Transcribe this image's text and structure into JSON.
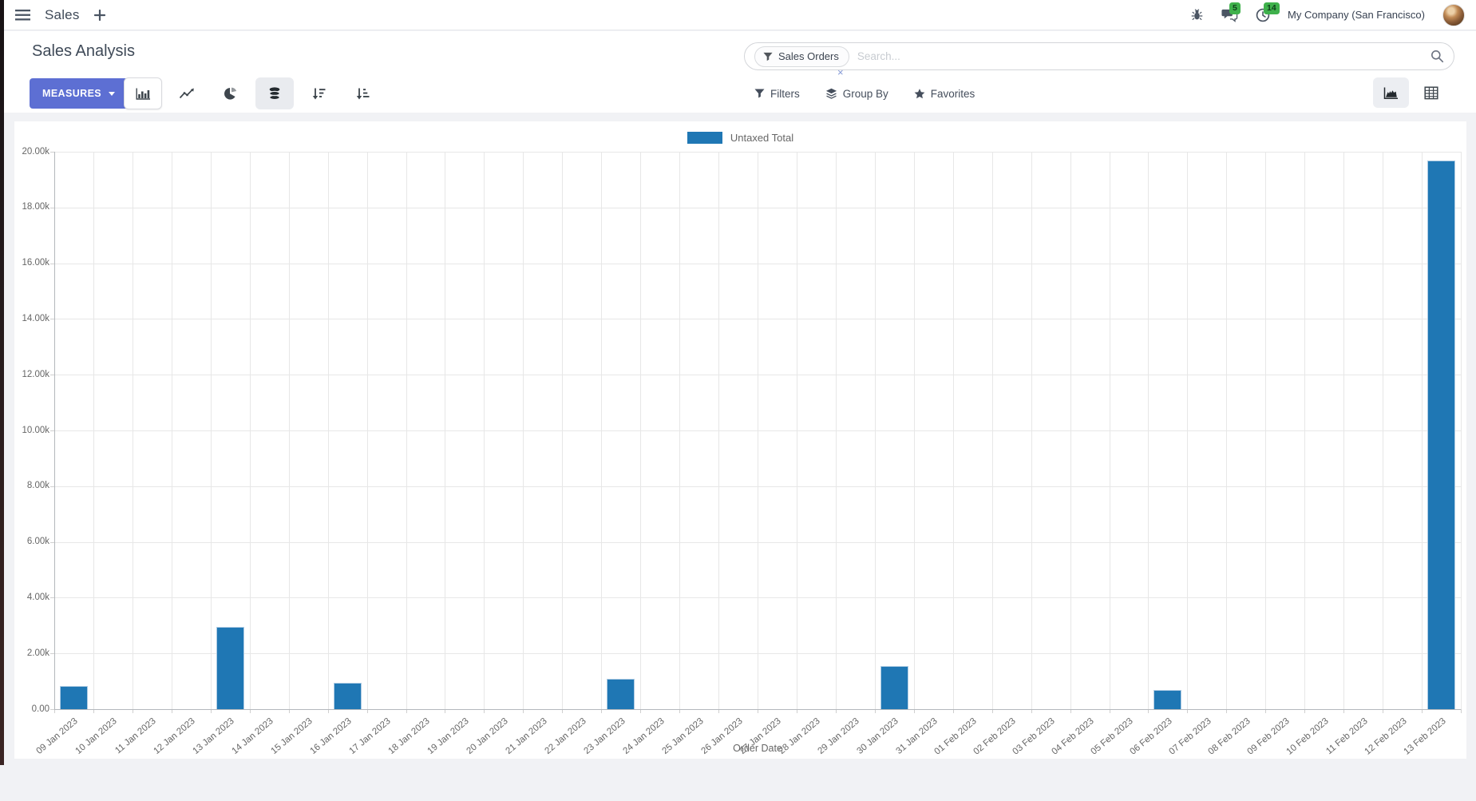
{
  "navbar": {
    "app_label": "Sales",
    "messages_badge": "5",
    "activities_badge": "14",
    "company": "My Company (San Francisco)"
  },
  "control_panel": {
    "title": "Sales Analysis",
    "measures_label": "MEASURES",
    "search": {
      "facet_label": "Sales Orders",
      "facet_remove": "×",
      "placeholder": "Search..."
    },
    "menus": {
      "filters": "Filters",
      "group_by": "Group By",
      "favorites": "Favorites"
    }
  },
  "chart_data": {
    "type": "bar",
    "title": "",
    "xlabel": "Order Date",
    "ylabel": "",
    "ylim": [
      0,
      20000
    ],
    "grid": true,
    "legend_position": "top",
    "ytick_values": [
      0,
      2000,
      4000,
      6000,
      8000,
      10000,
      12000,
      14000,
      16000,
      18000,
      20000
    ],
    "ytick_labels": [
      "0.00",
      "2.00k",
      "4.00k",
      "6.00k",
      "8.00k",
      "10.00k",
      "12.00k",
      "14.00k",
      "16.00k",
      "18.00k",
      "20.00k"
    ],
    "categories": [
      "09 Jan 2023",
      "10 Jan 2023",
      "11 Jan 2023",
      "12 Jan 2023",
      "13 Jan 2023",
      "14 Jan 2023",
      "15 Jan 2023",
      "16 Jan 2023",
      "17 Jan 2023",
      "18 Jan 2023",
      "19 Jan 2023",
      "20 Jan 2023",
      "21 Jan 2023",
      "22 Jan 2023",
      "23 Jan 2023",
      "24 Jan 2023",
      "25 Jan 2023",
      "26 Jan 2023",
      "27 Jan 2023",
      "28 Jan 2023",
      "29 Jan 2023",
      "30 Jan 2023",
      "31 Jan 2023",
      "01 Feb 2023",
      "02 Feb 2023",
      "03 Feb 2023",
      "04 Feb 2023",
      "05 Feb 2023",
      "06 Feb 2023",
      "07 Feb 2023",
      "08 Feb 2023",
      "09 Feb 2023",
      "10 Feb 2023",
      "11 Feb 2023",
      "12 Feb 2023",
      "13 Feb 2023"
    ],
    "series": [
      {
        "name": "Untaxed Total",
        "color": "#1f77b4",
        "values": [
          820,
          0,
          0,
          0,
          2940,
          0,
          0,
          940,
          0,
          0,
          0,
          0,
          0,
          0,
          1090,
          0,
          0,
          0,
          0,
          0,
          0,
          1550,
          0,
          0,
          0,
          0,
          0,
          0,
          690,
          0,
          0,
          0,
          0,
          0,
          0,
          19690
        ]
      }
    ]
  },
  "colors": {
    "accent": "#5d6fd3",
    "bar": "#1f77b4",
    "badge_green": "#3fb14c",
    "page_bg": "#f1f2f5"
  }
}
